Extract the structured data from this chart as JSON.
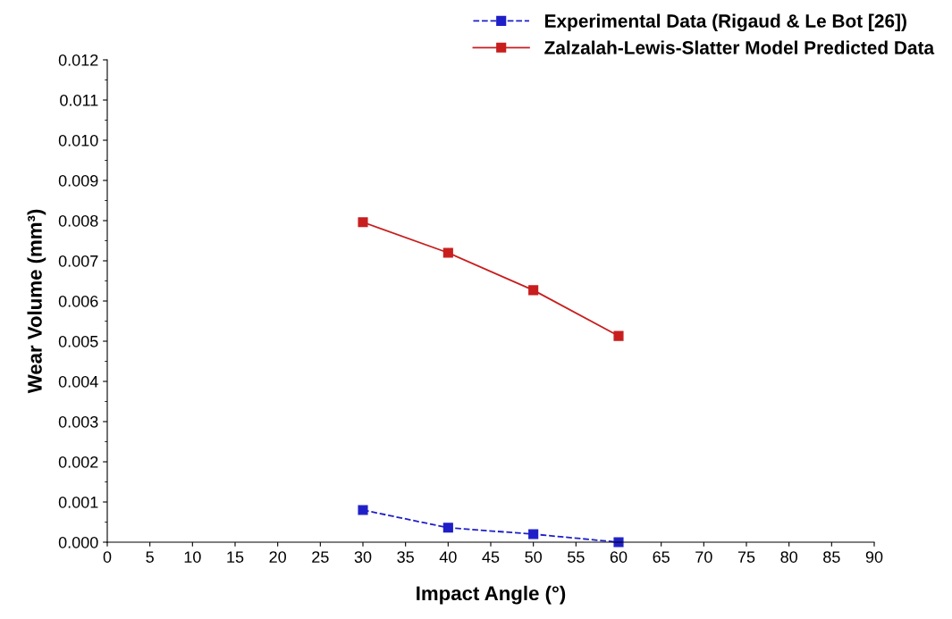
{
  "chart_data": {
    "type": "line",
    "xlabel": "Impact Angle (°)",
    "ylabel": "Wear Volume (mm³)",
    "x": [
      30,
      40,
      50,
      60
    ],
    "series": [
      {
        "name": "Experimental Data (Rigaud & Le Bot [26])",
        "color": "#1f1fc8",
        "values": [
          0.0008,
          0.00036,
          0.0002,
          0.0
        ],
        "line_style": "dashed"
      },
      {
        "name": "Zalzalah-Lewis-Slatter Model Predicted Data",
        "color": "#c81e1e",
        "values": [
          0.00796,
          0.0072,
          0.00627,
          0.00513
        ],
        "line_style": "solid"
      }
    ],
    "marker": "square",
    "xlim": [
      0,
      90
    ],
    "xticks": [
      0,
      5,
      10,
      15,
      20,
      25,
      30,
      35,
      40,
      45,
      50,
      55,
      60,
      65,
      70,
      75,
      80,
      85,
      90
    ],
    "ylim": [
      0,
      0.012
    ],
    "yticks": [
      {
        "value": 0,
        "label": "0.000"
      },
      {
        "value": 0.001,
        "label": "0.001"
      },
      {
        "value": 0.002,
        "label": "0.002"
      },
      {
        "value": 0.003,
        "label": "0.003"
      },
      {
        "value": 0.004,
        "label": "0.004"
      },
      {
        "value": 0.005,
        "label": "0.005"
      },
      {
        "value": 0.006,
        "label": "0.006"
      },
      {
        "value": 0.007,
        "label": "0.007"
      },
      {
        "value": 0.008,
        "label": "0.008"
      },
      {
        "value": 0.009,
        "label": "0.009"
      },
      {
        "value": 0.01,
        "label": "0.010"
      },
      {
        "value": 0.011,
        "label": "0.011"
      },
      {
        "value": 0.012,
        "label": "0.012"
      }
    ],
    "grid": false,
    "legend": "top right"
  }
}
